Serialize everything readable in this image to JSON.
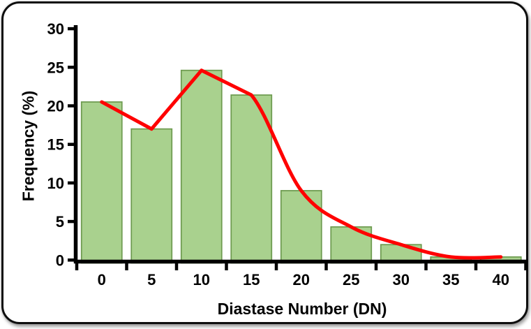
{
  "chart_data": {
    "type": "bar",
    "subtype": "histogram-with-frequency-polygon",
    "title": "",
    "xlabel": "Diastase Number (DN)",
    "ylabel": "Frequency (%)",
    "categories": [
      0,
      5,
      10,
      15,
      20,
      25,
      30,
      35,
      40
    ],
    "values": [
      20.5,
      17.0,
      24.6,
      21.4,
      9.0,
      4.3,
      2.0,
      0.4,
      0.4
    ],
    "overlay_line": {
      "name": "frequency-polygon",
      "values": [
        20.5,
        17.0,
        24.6,
        21.4,
        9.0,
        4.3,
        2.0,
        0.4,
        0.4
      ],
      "color": "#ff0000"
    },
    "ylim": [
      0,
      30
    ],
    "yticks": [
      0,
      5,
      10,
      15,
      20,
      25,
      30
    ],
    "bin_width": 5,
    "grid": false,
    "legend": "none",
    "colors": {
      "bar_fill": "#a9d18e",
      "bar_stroke": "#6e9b50",
      "axis": "#000000",
      "text": "#000000"
    }
  }
}
